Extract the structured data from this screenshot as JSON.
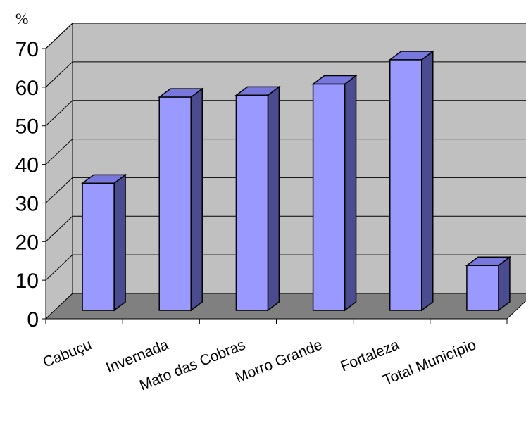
{
  "chart_data": {
    "type": "bar",
    "ylabel": "%",
    "categories": [
      "Cabuçu",
      "Invernada",
      "Mato das Cobras",
      "Morro Grande",
      "Fortaleza",
      "Total Município"
    ],
    "series": [
      {
        "values": [
          34,
          57,
          57.5,
          60.5,
          67,
          12
        ]
      }
    ],
    "ylim": [
      0,
      70
    ],
    "yticks": [
      "0",
      "10",
      "20",
      "30",
      "40",
      "50",
      "60",
      "70"
    ],
    "grid": true,
    "legend": "none",
    "colors": {
      "bar_front": "#9999ff",
      "bar_side": "#4b4b8f",
      "bar_top": "#7777dd",
      "wall": "#c0c0c0",
      "floor": "#808080"
    }
  }
}
